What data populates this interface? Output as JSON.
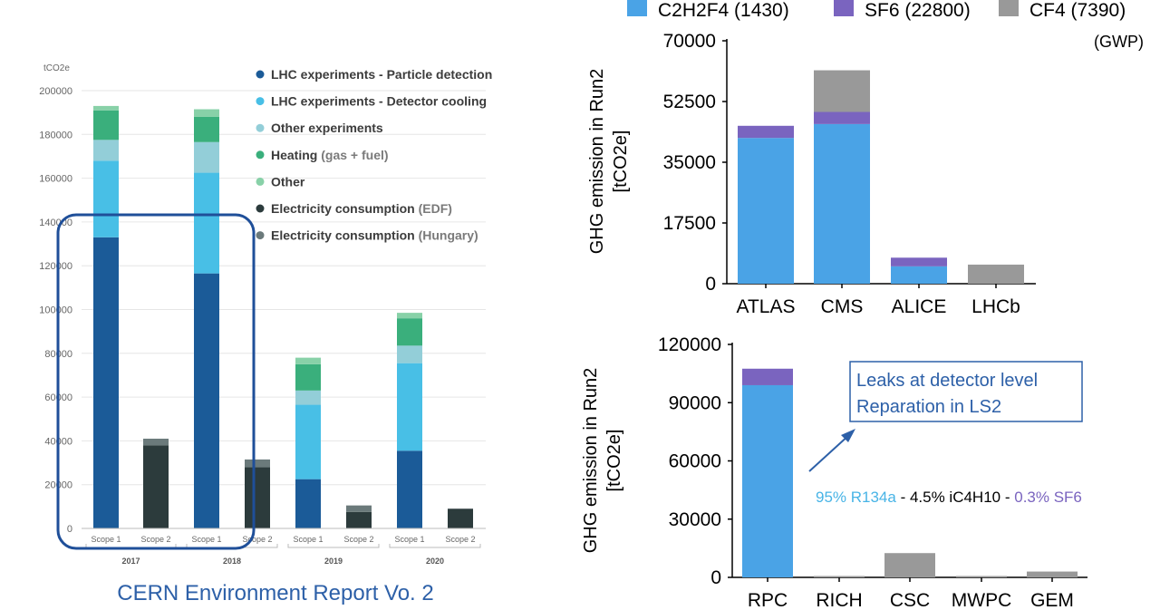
{
  "colors": {
    "lhc_particle": "#1b5b98",
    "lhc_cooling": "#48bfe6",
    "other_exp": "#93ced8",
    "heating": "#3aaf7c",
    "other": "#88d1a8",
    "elec_edf": "#2c3b3c",
    "elec_hungary": "#6b7a7b",
    "c2h2f4": "#4aa3e6",
    "sf6": "#7a64bf",
    "cf4": "#999999",
    "highlight": "#1f4f99",
    "ann_text": "#2d60a8"
  },
  "left_caption": "CERN Environment Report Vo. 2",
  "left_legend": [
    {
      "bold": "LHC experiments - Particle detection",
      "normal": "",
      "color_key": "lhc_particle"
    },
    {
      "bold": "LHC experiments - Detector cooling",
      "normal": "",
      "color_key": "lhc_cooling"
    },
    {
      "bold": "Other experiments",
      "normal": "",
      "color_key": "other_exp"
    },
    {
      "bold": "Heating",
      "normal": " (gas + fuel)",
      "color_key": "heating"
    },
    {
      "bold": "Other",
      "normal": "",
      "color_key": "other"
    },
    {
      "bold": "Electricity consumption",
      "normal": " (EDF)",
      "color_key": "elec_edf"
    },
    {
      "bold": "Electricity consumption",
      "normal": " (Hungary)",
      "color_key": "elec_hungary"
    }
  ],
  "top_legend": [
    {
      "label": "C2H2F4 (1430)",
      "color_key": "c2h2f4"
    },
    {
      "label": "SF6 (22800)",
      "color_key": "sf6"
    },
    {
      "label": "CF4 (7390)",
      "color_key": "cf4"
    }
  ],
  "top_legend_note": "(GWP)",
  "annotation": {
    "line1": "Leaks at detector level",
    "line2": "Reparation in LS2"
  },
  "mix_note": {
    "p1": "95% R134a",
    "p2": " - 4.5% iC4H10 - ",
    "p3": "0.3% SF6"
  },
  "chart_data": [
    {
      "type": "bar",
      "stacked": true,
      "ylabel": "tCO2e",
      "ylim": [
        0,
        200000
      ],
      "yticks": [
        0,
        20000,
        40000,
        60000,
        80000,
        100000,
        120000,
        140000,
        160000,
        180000,
        200000
      ],
      "categories": [
        "Scope 1",
        "Scope 2",
        "Scope 1",
        "Scope 2",
        "Scope 1",
        "Scope 2",
        "Scope 1",
        "Scope 2"
      ],
      "groups": [
        "2017",
        "2018",
        "2019",
        "2020"
      ],
      "series": [
        {
          "name": "LHC experiments - Particle detection",
          "color_key": "lhc_particle",
          "values": [
            133000,
            0,
            116500,
            0,
            22500,
            0,
            35500,
            0
          ]
        },
        {
          "name": "LHC experiments - Detector cooling",
          "color_key": "lhc_cooling",
          "values": [
            35000,
            0,
            46000,
            0,
            34000,
            0,
            40000,
            0
          ]
        },
        {
          "name": "Other experiments",
          "color_key": "other_exp",
          "values": [
            9500,
            0,
            14000,
            0,
            6500,
            0,
            8000,
            0
          ]
        },
        {
          "name": "Heating (gas + fuel)",
          "color_key": "heating",
          "values": [
            13500,
            0,
            11500,
            0,
            12000,
            0,
            12500,
            0
          ]
        },
        {
          "name": "Other",
          "color_key": "other",
          "values": [
            2000,
            0,
            3500,
            0,
            3000,
            0,
            2500,
            0
          ]
        },
        {
          "name": "Electricity consumption (EDF)",
          "color_key": "elec_edf",
          "values": [
            0,
            38000,
            0,
            28000,
            0,
            7500,
            0,
            9000
          ]
        },
        {
          "name": "Electricity consumption (Hungary)",
          "color_key": "elec_hungary",
          "values": [
            0,
            3000,
            0,
            3500,
            0,
            3000,
            0,
            0
          ]
        }
      ]
    },
    {
      "type": "bar",
      "stacked": true,
      "ylabel_lines": [
        "GHG emission in Run2",
        "[tCO2e]"
      ],
      "ylim": [
        0,
        70000
      ],
      "yticks": [
        0,
        17500,
        35000,
        52500,
        70000
      ],
      "categories": [
        "ATLAS",
        "CMS",
        "ALICE",
        "LHCb"
      ],
      "series": [
        {
          "name": "C2H2F4 (1430)",
          "color_key": "c2h2f4",
          "values": [
            42000,
            46000,
            5000,
            0
          ]
        },
        {
          "name": "SF6 (22800)",
          "color_key": "sf6",
          "values": [
            3500,
            3500,
            2500,
            0
          ]
        },
        {
          "name": "CF4 (7390)",
          "color_key": "cf4",
          "values": [
            0,
            12000,
            0,
            5500
          ]
        }
      ]
    },
    {
      "type": "bar",
      "stacked": true,
      "ylabel_lines": [
        "GHG emission in Run2",
        "[tCO2e]"
      ],
      "ylim": [
        0,
        120000
      ],
      "yticks": [
        0,
        30000,
        60000,
        90000,
        120000
      ],
      "categories": [
        "RPC",
        "RICH",
        "CSC",
        "MWPC",
        "GEM"
      ],
      "series": [
        {
          "name": "C2H2F4 (1430)",
          "color_key": "c2h2f4",
          "values": [
            99000,
            0,
            0,
            0,
            0
          ]
        },
        {
          "name": "SF6 (22800)",
          "color_key": "sf6",
          "values": [
            8500,
            0,
            0,
            0,
            0
          ]
        },
        {
          "name": "CF4 (7390)",
          "color_key": "cf4",
          "values": [
            0,
            700,
            12500,
            700,
            3000
          ]
        }
      ]
    }
  ]
}
